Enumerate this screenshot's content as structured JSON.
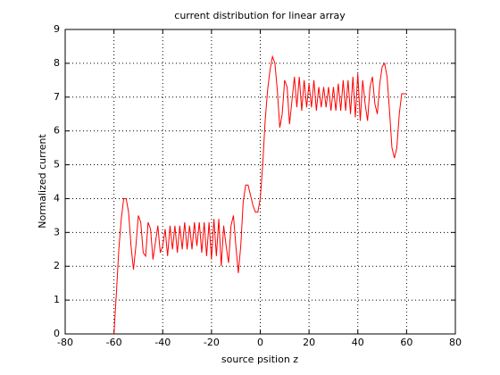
{
  "chart_data": {
    "type": "line",
    "title": "current distribution for linear array",
    "x_label": "source psition z",
    "y_label": "Normalized current",
    "x": [
      -60,
      -59,
      -58,
      -57,
      -56,
      -55,
      -54,
      -53,
      -52,
      -51,
      -50,
      -49,
      -48,
      -47,
      -46,
      -45,
      -44,
      -43,
      -42,
      -41,
      -40,
      -39,
      -38,
      -37,
      -36,
      -35,
      -34,
      -33,
      -32,
      -31,
      -30,
      -29,
      -28,
      -27,
      -26,
      -25,
      -24,
      -23,
      -22,
      -21,
      -20,
      -19,
      -18,
      -17,
      -16,
      -15,
      -14,
      -13,
      -12,
      -11,
      -10,
      -9,
      -8,
      -7,
      -6,
      -5,
      -4,
      -3,
      -2,
      -1,
      0,
      1,
      2,
      3,
      4,
      5,
      6,
      7,
      8,
      9,
      10,
      11,
      12,
      13,
      14,
      15,
      16,
      17,
      18,
      19,
      20,
      21,
      22,
      23,
      24,
      25,
      26,
      27,
      28,
      29,
      30,
      31,
      32,
      33,
      34,
      35,
      36,
      37,
      38,
      39,
      40,
      41,
      42,
      43,
      44,
      45,
      46,
      47,
      48,
      49,
      50,
      51,
      52,
      53,
      54,
      55,
      56,
      57,
      58,
      59,
      60
    ],
    "series": [
      {
        "color": "#ff0000",
        "values": [
          0,
          1.2,
          2.5,
          3.4,
          4.0,
          4.0,
          3.6,
          2.6,
          1.9,
          2.6,
          3.5,
          3.3,
          2.4,
          2.3,
          3.3,
          3.1,
          2.2,
          2.7,
          3.2,
          2.4,
          2.6,
          3.1,
          2.3,
          3.2,
          2.5,
          3.2,
          2.4,
          3.2,
          2.5,
          3.3,
          2.5,
          3.2,
          2.5,
          3.3,
          2.6,
          3.3,
          2.4,
          3.3,
          2.3,
          3.3,
          2.2,
          3.4,
          2.3,
          3.4,
          2.0,
          3.2,
          2.6,
          2.1,
          3.2,
          3.5,
          2.6,
          1.8,
          2.6,
          3.9,
          4.4,
          4.4,
          4.1,
          3.8,
          3.6,
          3.6,
          4.0,
          5.0,
          6.3,
          7.2,
          7.8,
          8.2,
          8.0,
          7.2,
          6.1,
          6.5,
          7.5,
          7.3,
          6.2,
          6.9,
          7.6,
          6.7,
          7.6,
          6.6,
          7.5,
          6.7,
          7.4,
          6.7,
          7.5,
          6.6,
          7.3,
          6.7,
          7.3,
          6.7,
          7.3,
          6.6,
          7.3,
          6.6,
          7.4,
          6.6,
          7.5,
          6.6,
          7.5,
          6.5,
          7.6,
          6.4,
          7.7,
          6.3,
          7.5,
          6.8,
          6.3,
          7.3,
          7.6,
          6.8,
          6.5,
          7.4,
          7.9,
          8.0,
          7.6,
          6.6,
          5.5,
          5.2,
          5.5,
          6.5,
          7.1,
          7.1,
          7.1
        ]
      }
    ],
    "xlim": [
      -80,
      80
    ],
    "xticks": [
      -80,
      -60,
      -40,
      -20,
      0,
      20,
      40,
      60,
      80
    ],
    "ylim": [
      0,
      9
    ],
    "yticks": [
      0,
      1,
      2,
      3,
      4,
      5,
      6,
      7,
      8,
      9
    ],
    "grid": true
  }
}
